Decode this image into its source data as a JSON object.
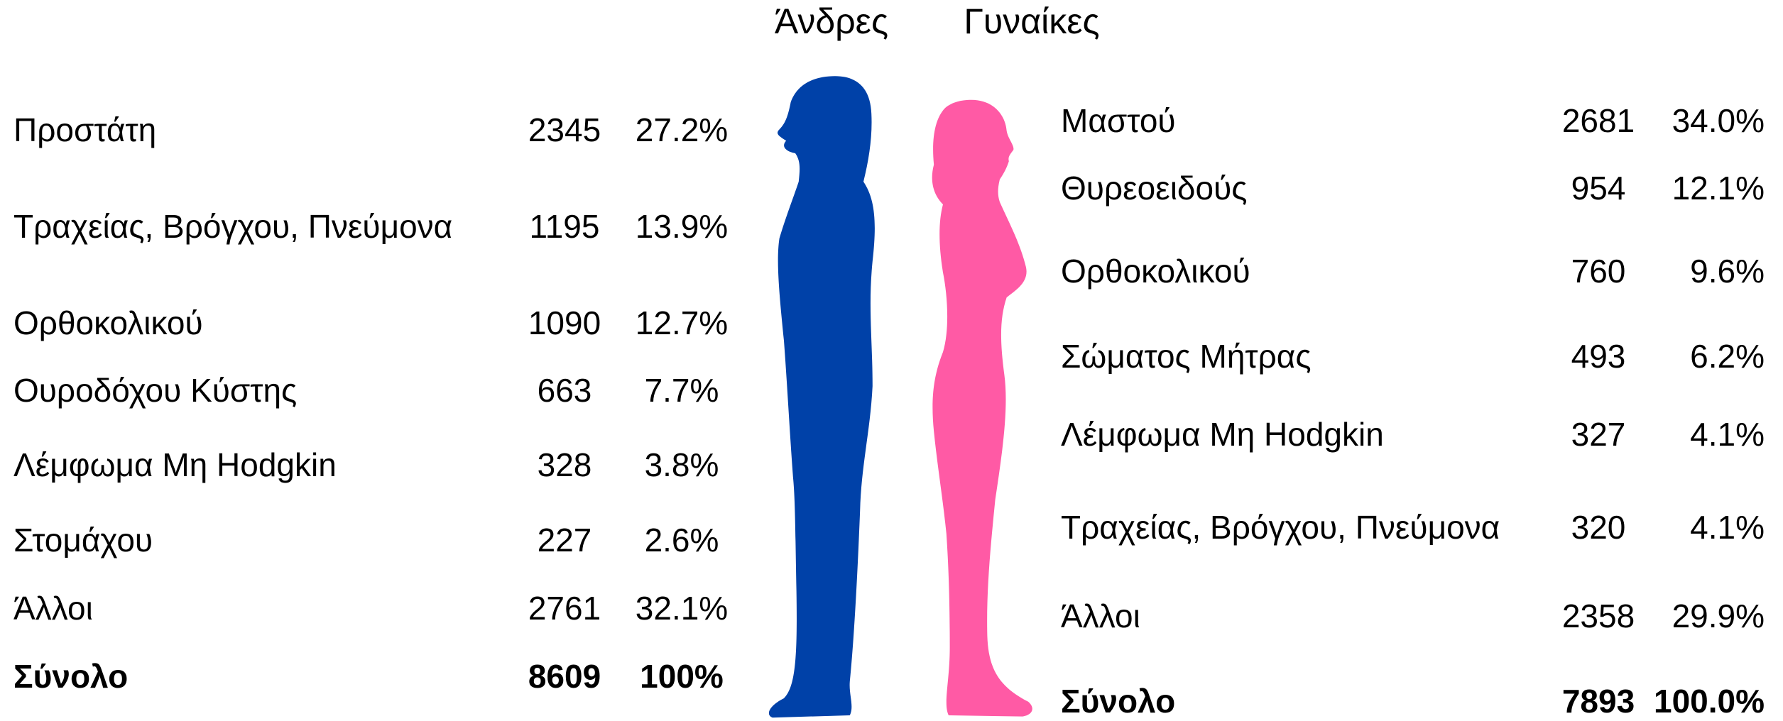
{
  "headers": {
    "men": "Άνδρες",
    "women": "Γυναίκες"
  },
  "men": {
    "rows": [
      [
        "Προστάτη",
        "2345",
        "27.2%"
      ],
      [
        "Τραχείας, Βρόγχου, Πνεύμονα",
        "1195",
        "13.9%"
      ],
      [
        "Ορθοκολικού",
        "1090",
        "12.7%"
      ],
      [
        "Ουροδόχου Κύστης",
        "663",
        "7.7%"
      ],
      [
        "Λέμφωμα Μη  Hodgkin",
        "328",
        "3.8%"
      ],
      [
        "Στομάχου",
        "227",
        "2.6%"
      ],
      [
        "Άλλοι",
        "2761",
        "32.1%"
      ]
    ],
    "total": [
      "Σύνολο",
      "8609",
      "100%"
    ]
  },
  "women": {
    "rows": [
      [
        "Μαστού",
        "2681",
        "34.0%"
      ],
      [
        "Θυρεοειδούς",
        "954",
        "12.1%"
      ],
      [
        "Ορθοκολικού",
        "760",
        "9.6%"
      ],
      [
        "Σώματος Μήτρας",
        "493",
        "6.2%"
      ],
      [
        "Λέμφωμα Μη Hodgkin",
        "327",
        "4.1%"
      ],
      [
        "Τραχείας, Βρόγχου, Πνεύμονα",
        "320",
        "4.1%"
      ],
      [
        "Άλλοι",
        "2358",
        "29.9%"
      ]
    ],
    "total": [
      "Σύνολο",
      "7893",
      "100.0%"
    ]
  }
}
